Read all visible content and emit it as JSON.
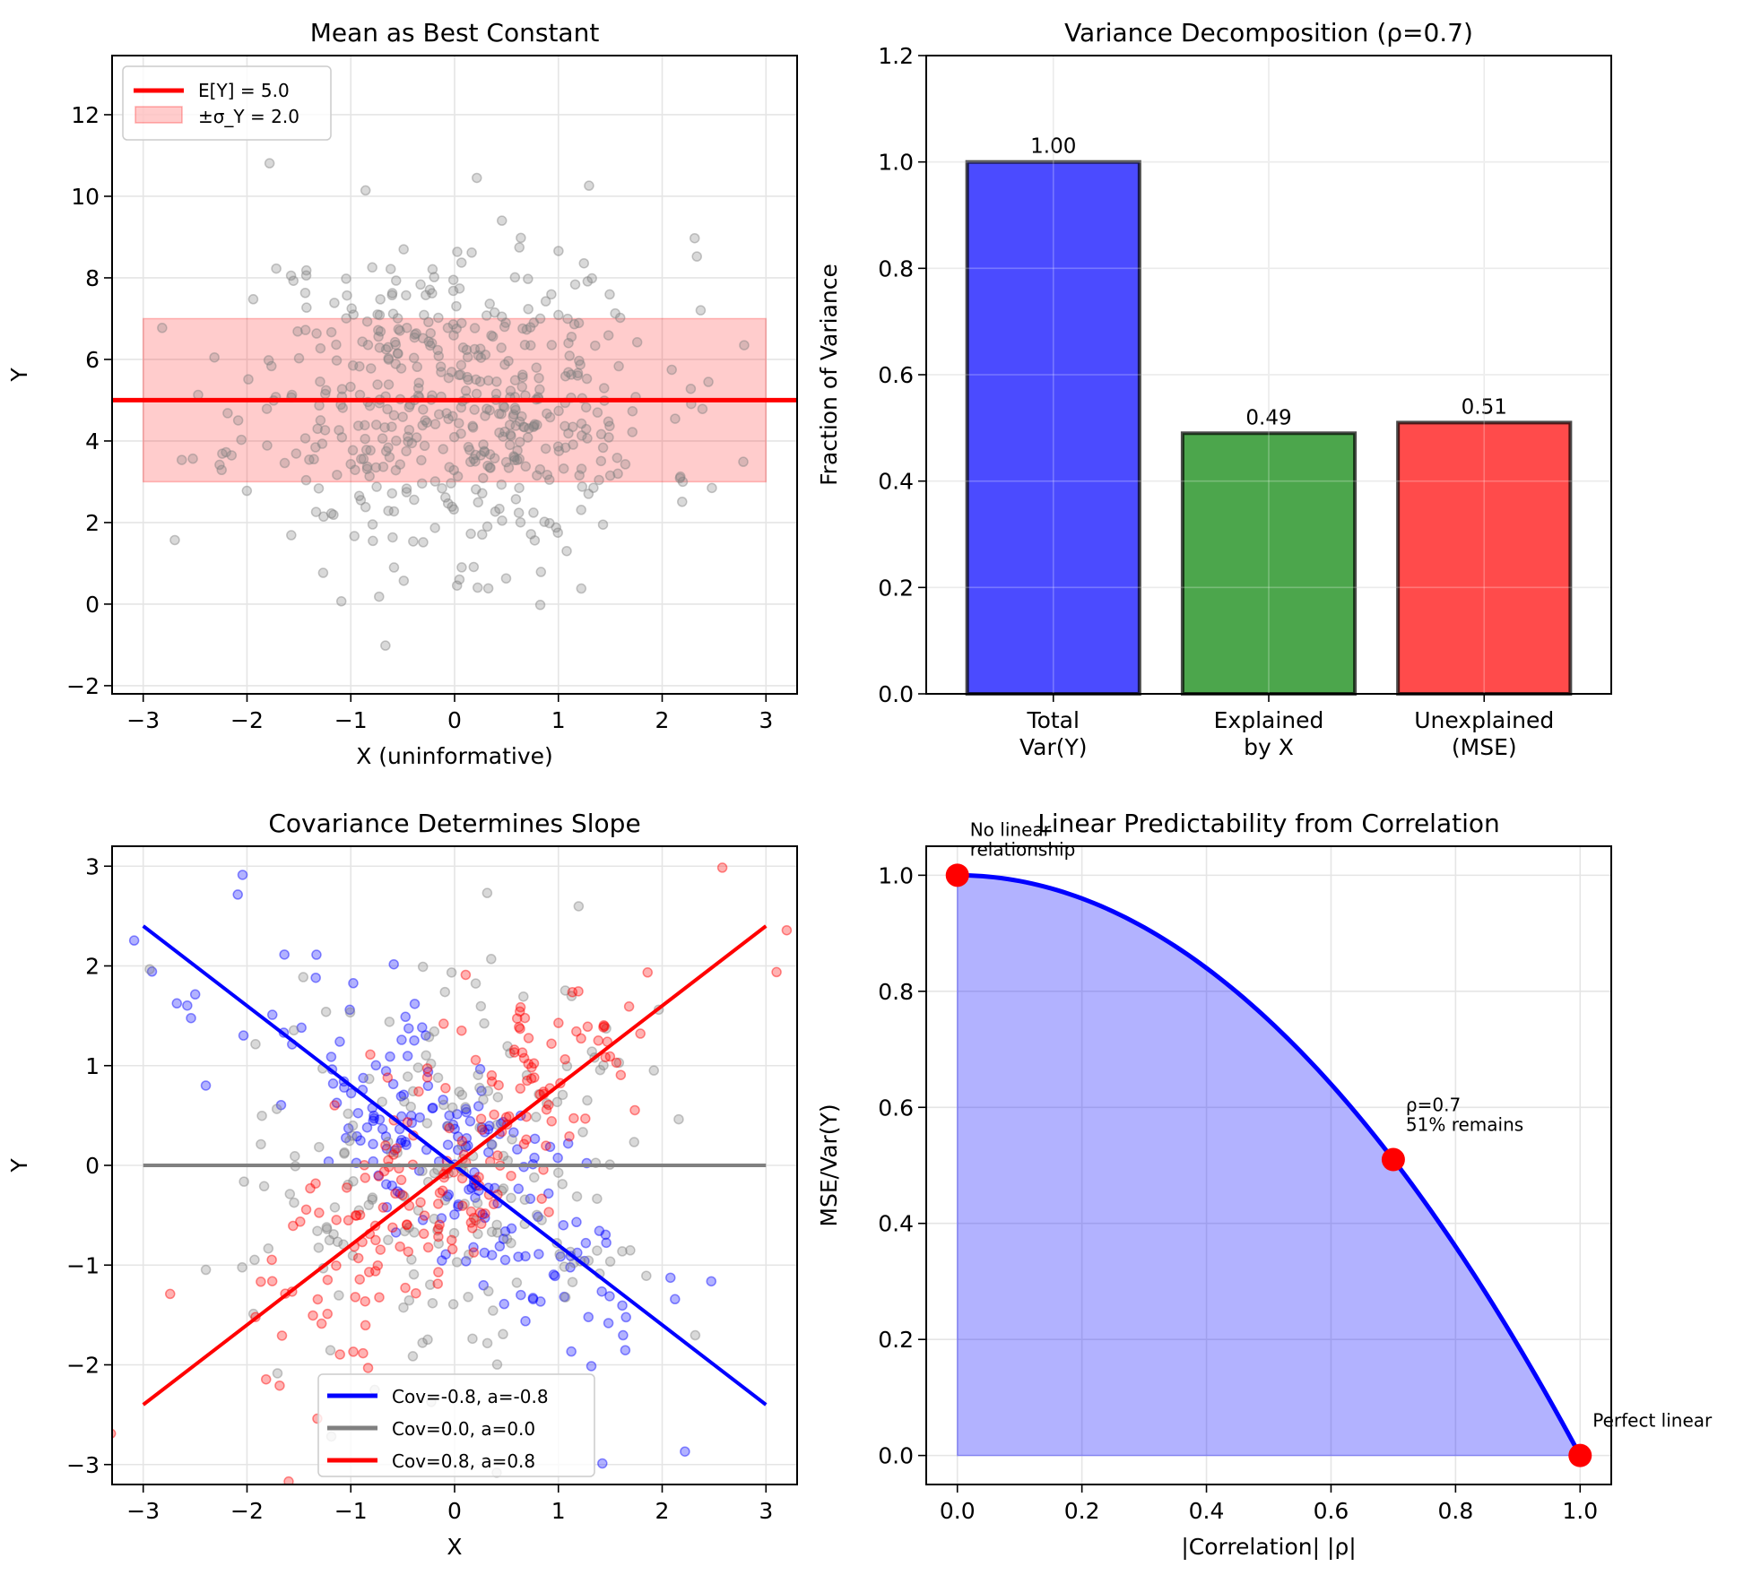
{
  "chart_data": [
    {
      "id": "p1",
      "type": "scatter",
      "title": "Mean as Best Constant",
      "xlabel": "X (uninformative)",
      "ylabel": "Y",
      "xlim": [
        -3.3,
        3.3
      ],
      "ylim": [
        -2.2,
        13.45
      ],
      "xticks": [
        -3,
        -2,
        -1,
        0,
        1,
        2,
        3
      ],
      "yticks": [
        -2,
        0,
        2,
        4,
        6,
        8,
        10,
        12
      ],
      "grid": true,
      "scatter": {
        "n": 500,
        "x_mean": 0,
        "x_std": 1,
        "y_mean": 5.0,
        "y_std": 2.0,
        "color": "#808080",
        "seed": 11
      },
      "mean_line": {
        "y": 5.0,
        "color": "#ff0000",
        "label": "E[Y] = 5.0"
      },
      "band": {
        "y_low": 3.0,
        "y_high": 7.0,
        "x_range": [
          -3,
          3
        ],
        "color": "#ff0000",
        "label": "±σ_Y = 2.0"
      },
      "legend": "top-left"
    },
    {
      "id": "p2",
      "type": "bar",
      "title": "Variance Decomposition (ρ=0.7)",
      "xlabel": "",
      "ylabel": "Fraction of Variance",
      "categories": [
        "Total\nVar(Y)",
        "Explained\nby X",
        "Unexplained\n(MSE)"
      ],
      "values": [
        1.0,
        0.49,
        0.51
      ],
      "value_labels": [
        "1.00",
        "0.49",
        "0.51"
      ],
      "colors": [
        "#4b4bff",
        "#4ca64c",
        "#ff4b4b"
      ],
      "ylim": [
        0,
        1.2
      ],
      "yticks": [
        0.0,
        0.2,
        0.4,
        0.6,
        0.8,
        1.0,
        1.2
      ],
      "ytick_labels": [
        "0.0",
        "0.2",
        "0.4",
        "0.6",
        "0.8",
        "1.0",
        "1.2"
      ],
      "grid": true
    },
    {
      "id": "p3",
      "type": "scatter",
      "title": "Covariance Determines Slope",
      "xlabel": "X",
      "ylabel": "Y",
      "xlim": [
        -3.3,
        3.3
      ],
      "ylim": [
        -3.2,
        3.2
      ],
      "xticks": [
        -3,
        -2,
        -1,
        0,
        1,
        2,
        3
      ],
      "yticks": [
        -3,
        -2,
        -1,
        0,
        1,
        2,
        3
      ],
      "grid": true,
      "series": [
        {
          "name": "Cov=-0.8, a=-0.8",
          "slope": -0.8,
          "color": "#0000ff",
          "n": 200,
          "seed": 21
        },
        {
          "name": "Cov=0.0, a=0.0",
          "slope": 0.0,
          "color": "#808080",
          "n": 200,
          "seed": 33
        },
        {
          "name": "Cov=0.8, a=0.8",
          "slope": 0.8,
          "color": "#ff0000",
          "n": 200,
          "seed": 47
        }
      ],
      "line_x_range": [
        -3,
        3
      ],
      "legend": "bottom-center"
    },
    {
      "id": "p4",
      "type": "area",
      "title": "Linear Predictability from Correlation",
      "xlabel": "|Correlation| |ρ|",
      "ylabel": "MSE/Var(Y)",
      "xlim": [
        -0.05,
        1.05
      ],
      "ylim": [
        -0.05,
        1.05
      ],
      "xticks": [
        0.0,
        0.2,
        0.4,
        0.6,
        0.8,
        1.0
      ],
      "xtick_labels": [
        "0.0",
        "0.2",
        "0.4",
        "0.6",
        "0.8",
        "1.0"
      ],
      "yticks": [
        0.0,
        0.2,
        0.4,
        0.6,
        0.8,
        1.0
      ],
      "ytick_labels": [
        "0.0",
        "0.2",
        "0.4",
        "0.6",
        "0.8",
        "1.0"
      ],
      "grid": true,
      "curve": {
        "formula": "1 - rho^2",
        "x_range": [
          0,
          1
        ],
        "color": "#0000ff",
        "fill": "#0000ff"
      },
      "points": [
        {
          "x": 0.0,
          "y": 1.0,
          "label_lines": [
            "No linear",
            "relationship"
          ]
        },
        {
          "x": 0.7,
          "y": 0.51,
          "label_lines": [
            "ρ=0.7",
            "51% remains"
          ]
        },
        {
          "x": 1.0,
          "y": 0.0,
          "label_lines": [
            "Perfect linear"
          ]
        }
      ],
      "point_color": "#ff0000"
    }
  ]
}
